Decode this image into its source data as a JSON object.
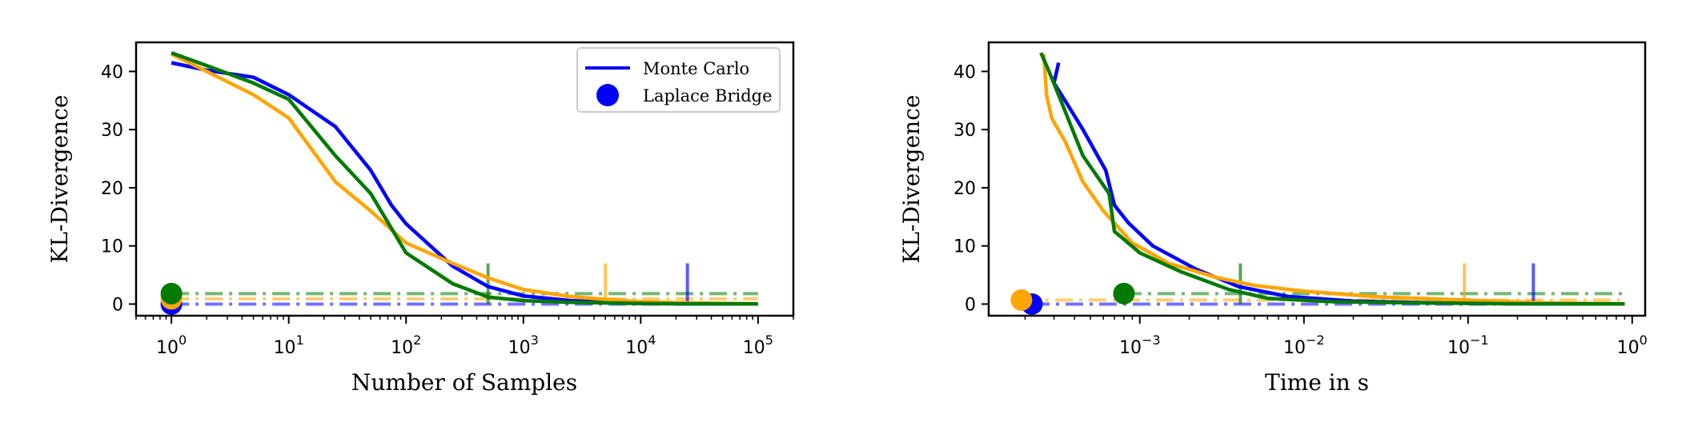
{
  "legend": {
    "mc_label": "Monte Carlo",
    "lb_label": "Laplace Bridge"
  },
  "colors": {
    "blue": "#0000ff",
    "orange": "#ffa500",
    "green": "#007a00"
  },
  "chart_data": [
    {
      "type": "line",
      "title": "",
      "xlabel": "Number of Samples",
      "ylabel": "KL-Divergence",
      "xscale": "log",
      "xlim": [
        0.5,
        200000
      ],
      "ylim": [
        -2,
        45
      ],
      "grid": false,
      "legend_position": "top-right",
      "x_ticks": [
        {
          "value": 1,
          "base": "10",
          "exp": "0"
        },
        {
          "value": 10,
          "base": "10",
          "exp": "1"
        },
        {
          "value": 100,
          "base": "10",
          "exp": "2"
        },
        {
          "value": 1000,
          "base": "10",
          "exp": "3"
        },
        {
          "value": 10000,
          "base": "10",
          "exp": "4"
        },
        {
          "value": 100000,
          "base": "10",
          "exp": "5"
        }
      ],
      "y_ticks": [
        0,
        10,
        20,
        30,
        40
      ],
      "series": [
        {
          "color": "blue",
          "x": [
            1,
            2,
            5,
            10,
            25,
            50,
            75,
            100,
            250,
            500,
            1000,
            2500,
            5000,
            10000,
            25000,
            100000
          ],
          "y": [
            41.5,
            40.2,
            39,
            36,
            30.5,
            23,
            17,
            13.8,
            6.5,
            3,
            1.4,
            0.6,
            0.3,
            0.15,
            0.05,
            0.02
          ]
        },
        {
          "color": "orange",
          "x": [
            1,
            2,
            5,
            10,
            25,
            50,
            100,
            250,
            500,
            1000,
            2500,
            5000,
            10000,
            25000,
            100000
          ],
          "y": [
            43,
            40,
            36,
            32,
            21,
            16,
            10.5,
            7,
            4.5,
            2.5,
            1.3,
            0.8,
            0.4,
            0.2,
            0.05
          ]
        },
        {
          "color": "green",
          "x": [
            1,
            2,
            5,
            10,
            25,
            50,
            100,
            250,
            500,
            1000,
            2500,
            5000,
            10000,
            25000,
            100000
          ],
          "y": [
            43.2,
            41,
            38,
            35.2,
            25.5,
            19,
            8.8,
            3.5,
            1.2,
            0.6,
            0.3,
            0.2,
            0.1,
            0.05,
            0.02
          ]
        }
      ],
      "laplace_bridge": [
        {
          "color": "blue",
          "x": 1,
          "y": 0
        },
        {
          "color": "orange",
          "x": 1,
          "y": 0.9
        },
        {
          "color": "green",
          "x": 1,
          "y": 1.8
        }
      ],
      "crossover_markers": [
        {
          "color": "green",
          "x": 500
        },
        {
          "color": "orange",
          "x": 5000
        },
        {
          "color": "blue",
          "x": 25000
        }
      ]
    },
    {
      "type": "line",
      "title": "",
      "xlabel": "Time in s",
      "ylabel": "KL-Divergence",
      "xscale": "log",
      "xlim": [
        0.00012,
        1.2
      ],
      "ylim": [
        -2,
        45
      ],
      "grid": false,
      "x_ticks": [
        {
          "value": 0.001,
          "base": "10",
          "exp": "−3"
        },
        {
          "value": 0.01,
          "base": "10",
          "exp": "−2"
        },
        {
          "value": 0.1,
          "base": "10",
          "exp": "−1"
        },
        {
          "value": 1,
          "base": "10",
          "exp": "0"
        }
      ],
      "y_ticks": [
        0,
        10,
        20,
        30,
        40
      ],
      "series": [
        {
          "color": "blue",
          "x": [
            0.00032,
            0.0003,
            0.00035,
            0.00045,
            0.00062,
            0.0007,
            0.00085,
            0.0012,
            0.0022,
            0.004,
            0.008,
            0.02,
            0.06,
            0.25,
            0.9
          ],
          "y": [
            41.5,
            38,
            35,
            30,
            23,
            17,
            14,
            10,
            6,
            3,
            1.3,
            0.5,
            0.2,
            0.05,
            0.02
          ]
        },
        {
          "color": "orange",
          "x": [
            0.00026,
            0.00027,
            0.00029,
            0.00035,
            0.00045,
            0.0006,
            0.0009,
            0.0015,
            0.003,
            0.005,
            0.01,
            0.03,
            0.095,
            0.3,
            0.9
          ],
          "y": [
            43,
            36,
            32,
            28,
            21,
            16,
            10.5,
            7,
            4.5,
            3.2,
            2.2,
            1.2,
            0.7,
            0.2,
            0.05
          ]
        },
        {
          "color": "green",
          "x": [
            0.00025,
            0.00028,
            0.00033,
            0.00045,
            0.00065,
            0.0007,
            0.001,
            0.0018,
            0.0035,
            0.006,
            0.015,
            0.05,
            0.2,
            0.9
          ],
          "y": [
            43.2,
            40,
            35,
            25.5,
            19,
            12.5,
            8.8,
            5.5,
            2.5,
            1,
            0.4,
            0.2,
            0.05,
            0.02
          ]
        }
      ],
      "laplace_bridge": [
        {
          "color": "blue",
          "x": 0.00022,
          "y": 0
        },
        {
          "color": "orange",
          "x": 0.00019,
          "y": 0.7
        },
        {
          "color": "green",
          "x": 0.0008,
          "y": 1.8
        }
      ],
      "crossover_markers": [
        {
          "color": "green",
          "x": 0.0041
        },
        {
          "color": "orange",
          "x": 0.095
        },
        {
          "color": "blue",
          "x": 0.25
        }
      ]
    }
  ]
}
